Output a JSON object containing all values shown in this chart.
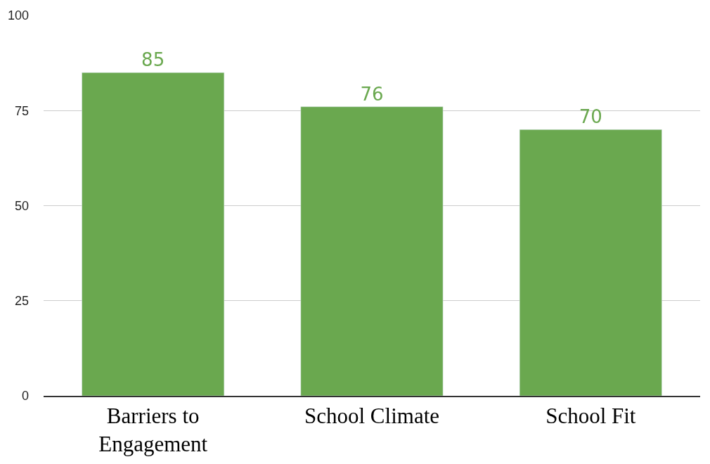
{
  "chart_data": {
    "type": "bar",
    "categories": [
      "Barriers to\nEngagement",
      "School Climate",
      "School Fit"
    ],
    "values": [
      85,
      76,
      70
    ],
    "color": "#6aa84f",
    "ylim": [
      0,
      100
    ],
    "yticks": [
      0,
      25,
      50,
      75,
      100
    ],
    "grid": "y",
    "data_labels": true
  }
}
